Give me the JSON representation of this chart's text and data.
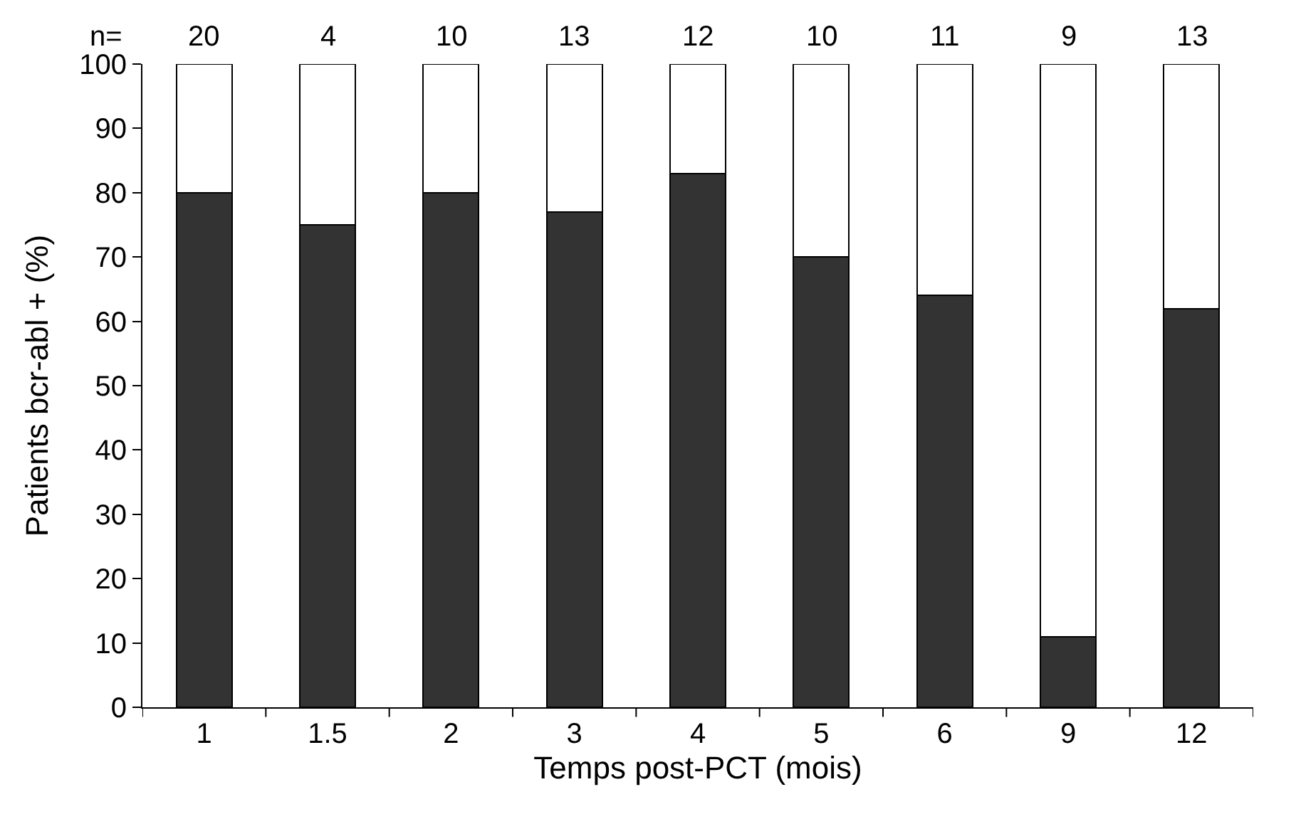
{
  "chart_data": {
    "type": "bar",
    "stacked": true,
    "xlabel": "Temps post-PCT (mois)",
    "ylabel": "Patients bcr-abl + (%)",
    "categories": [
      "1",
      "1.5",
      "2",
      "3",
      "4",
      "5",
      "6",
      "9",
      "12"
    ],
    "series": [
      {
        "color": "#333333",
        "values": [
          80,
          75,
          80,
          77,
          83,
          70,
          64,
          11,
          62
        ]
      },
      {
        "color": "#ffffff",
        "values": [
          20,
          25,
          20,
          23,
          17,
          30,
          36,
          89,
          38
        ]
      }
    ],
    "ylim": [
      0,
      100
    ],
    "yticks": [
      0,
      10,
      20,
      30,
      40,
      50,
      60,
      70,
      80,
      90,
      100
    ],
    "annotations": [
      "n=",
      "20",
      "4",
      "10",
      "13",
      "12",
      "10",
      "11",
      "9",
      "13"
    ]
  }
}
